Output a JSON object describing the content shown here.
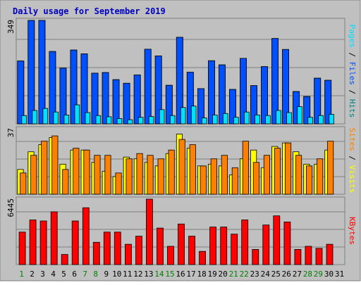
{
  "colors": {
    "background": "#C0C0C0",
    "plot_background": "#C0C0C0",
    "title_text": "#0000C0",
    "pages": "#00E0FF",
    "files": "#0050FF",
    "hits": "#008080",
    "visits": "#FFFF00",
    "sites": "#FF8000",
    "kbytes": "#FF0000",
    "weekday_text": "#008060",
    "weekend_text": "#008000",
    "grid": "#808080"
  },
  "chart_data": [
    {
      "type": "bar",
      "title": "Daily usage for September 2019",
      "categories": [
        "1",
        "2",
        "3",
        "4",
        "5",
        "6",
        "7",
        "8",
        "9",
        "10",
        "11",
        "12",
        "13",
        "14",
        "15",
        "16",
        "17",
        "18",
        "19",
        "20",
        "21",
        "22",
        "23",
        "24",
        "25",
        "26",
        "27",
        "28",
        "29",
        "30",
        "31"
      ],
      "weekend_days": [
        "1",
        "7",
        "8",
        "14",
        "15",
        "21",
        "22",
        "28",
        "29"
      ],
      "ymax_label": "349",
      "ylim": [
        0,
        349
      ],
      "legend_labels": [
        "Pages",
        "Files",
        "Hits"
      ],
      "legend_separators": [
        " / ",
        " / "
      ],
      "series": [
        {
          "name": "Hits",
          "values": [
            212,
            349,
            349,
            244,
            188,
            249,
            236,
            171,
            173,
            149,
            137,
            165,
            252,
            229,
            130,
            292,
            174,
            119,
            213,
            199,
            116,
            221,
            129,
            193,
            288,
            251,
            109,
            92,
            154,
            147,
            0
          ]
        },
        {
          "name": "Files",
          "values": [
            212,
            349,
            349,
            244,
            188,
            249,
            236,
            171,
            173,
            149,
            137,
            165,
            252,
            229,
            130,
            292,
            174,
            119,
            213,
            199,
            116,
            221,
            129,
            193,
            288,
            251,
            109,
            92,
            154,
            147,
            0
          ]
        },
        {
          "name": "Pages",
          "values": [
            28,
            45,
            52,
            40,
            30,
            64,
            38,
            28,
            24,
            18,
            14,
            22,
            25,
            48,
            28,
            55,
            60,
            20,
            30,
            35,
            22,
            40,
            30,
            28,
            45,
            38,
            58,
            22,
            28,
            32,
            0
          ]
        }
      ]
    },
    {
      "type": "bar",
      "ymax_label": "37",
      "ylim": [
        0,
        37
      ],
      "legend_labels": [
        "Sites",
        "Visits"
      ],
      "legend_separators": [
        " / "
      ],
      "series": [
        {
          "name": "Visits",
          "values": [
            14,
            24,
            28,
            32,
            17,
            25,
            25,
            18,
            13,
            10,
            21,
            20,
            18,
            16,
            23,
            34,
            26,
            16,
            17,
            16,
            11,
            20,
            25,
            15,
            27,
            29,
            24,
            17,
            17,
            25,
            0
          ]
        },
        {
          "name": "Sites",
          "values": [
            12,
            22,
            30,
            33,
            14,
            26,
            25,
            22,
            22,
            12,
            20,
            23,
            22,
            20,
            25,
            31,
            28,
            16,
            20,
            22,
            15,
            30,
            18,
            22,
            26,
            29,
            22,
            16,
            20,
            30,
            0
          ]
        }
      ]
    },
    {
      "type": "bar",
      "ymax_label": "6445",
      "ylim": [
        0,
        6445
      ],
      "legend_labels": [
        "KBytes"
      ],
      "legend_separators": [],
      "series": [
        {
          "name": "KBytes",
          "values": [
            3200,
            4400,
            4300,
            5200,
            1000,
            4300,
            5600,
            2200,
            3200,
            3200,
            2000,
            2800,
            6445,
            3600,
            1800,
            4000,
            2800,
            1300,
            3700,
            3700,
            3000,
            4400,
            1500,
            3900,
            4800,
            4200,
            1500,
            1800,
            1600,
            2000,
            0
          ]
        }
      ]
    }
  ]
}
